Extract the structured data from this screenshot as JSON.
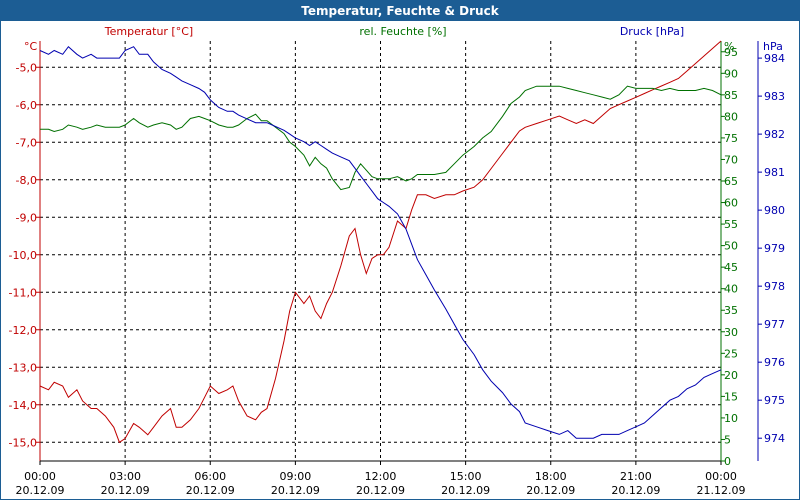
{
  "window": {
    "title": "Temperatur, Feuchte & Druck"
  },
  "chart_data": {
    "type": "line",
    "title": "Temperatur, Feuchte & Druck",
    "x_ticks": [
      {
        "time": "00:00",
        "date": "20.12.09"
      },
      {
        "time": "03:00",
        "date": "20.12.09"
      },
      {
        "time": "06:00",
        "date": "20.12.09"
      },
      {
        "time": "09:00",
        "date": "20.12.09"
      },
      {
        "time": "12:00",
        "date": "20.12.09"
      },
      {
        "time": "15:00",
        "date": "20.12.09"
      },
      {
        "time": "18:00",
        "date": "20.12.09"
      },
      {
        "time": "21:00",
        "date": "20.12.09"
      },
      {
        "time": "00:00",
        "date": "21.12.09"
      }
    ],
    "xlim_hours": [
      0,
      24
    ],
    "grid": true,
    "colors": {
      "temperature": "#c00000",
      "humidity": "#007000",
      "pressure": "#0000b0",
      "title_bar": "#1c5d94"
    },
    "axes": {
      "temperature": {
        "label": "Temperatur [°C]",
        "unit": "°C",
        "ylim": [
          -15.5,
          -4.3
        ],
        "ticks": [
          "-5,0",
          "-6,0",
          "-7,0",
          "-8,0",
          "-9,0",
          "-10,0",
          "-11,0",
          "-12,0",
          "-13,0",
          "-14,0",
          "-15,0"
        ]
      },
      "humidity": {
        "label": "rel. Feuchte [%]",
        "unit": "%",
        "ylim": [
          0,
          97.5
        ],
        "ticks": [
          "95",
          "90",
          "85",
          "80",
          "75",
          "70",
          "65",
          "60",
          "55",
          "50",
          "45",
          "40",
          "35",
          "30",
          "25",
          "20",
          "15",
          "10",
          "5",
          "0"
        ]
      },
      "pressure": {
        "label": "Druck [hPa]",
        "unit": "hPa",
        "ylim": [
          973.4,
          984.45
        ],
        "ticks": [
          "984",
          "983",
          "982",
          "981",
          "980",
          "979",
          "978",
          "977",
          "976",
          "975",
          "974"
        ]
      }
    },
    "series": [
      {
        "name": "Temperatur",
        "axis": "temperature",
        "x": [
          0,
          0.3,
          0.5,
          0.8,
          1,
          1.3,
          1.5,
          1.8,
          2,
          2.3,
          2.6,
          2.8,
          3,
          3.3,
          3.5,
          3.8,
          4,
          4.3,
          4.6,
          4.8,
          5,
          5.3,
          5.6,
          5.8,
          6,
          6.3,
          6.6,
          6.8,
          7,
          7.3,
          7.6,
          7.8,
          8,
          8.3,
          8.6,
          8.8,
          9,
          9.3,
          9.5,
          9.7,
          9.9,
          10.1,
          10.3,
          10.6,
          10.9,
          11.1,
          11.3,
          11.5,
          11.7,
          11.9,
          12.1,
          12.3,
          12.6,
          12.9,
          13.1,
          13.3,
          13.6,
          13.9,
          14.3,
          14.6,
          14.9,
          15.3,
          15.6,
          15.9,
          16.3,
          16.6,
          16.9,
          17.1,
          17.5,
          17.9,
          18.3,
          18.6,
          18.9,
          19.2,
          19.5,
          19.8,
          20.1,
          20.4,
          20.7,
          21,
          21.3,
          21.6,
          21.9,
          22.2,
          22.5,
          22.8,
          23.1,
          23.4,
          23.7,
          24
        ],
        "values": [
          -13.5,
          -13.6,
          -13.4,
          -13.5,
          -13.8,
          -13.6,
          -13.9,
          -14.1,
          -14.1,
          -14.3,
          -14.6,
          -15.0,
          -14.9,
          -14.5,
          -14.6,
          -14.8,
          -14.6,
          -14.3,
          -14.1,
          -14.6,
          -14.6,
          -14.4,
          -14.1,
          -13.8,
          -13.5,
          -13.7,
          -13.6,
          -13.5,
          -13.9,
          -14.3,
          -14.4,
          -14.2,
          -14.1,
          -13.3,
          -12.3,
          -11.5,
          -11.0,
          -11.3,
          -11.1,
          -11.5,
          -11.7,
          -11.3,
          -11.0,
          -10.3,
          -9.5,
          -9.3,
          -10.0,
          -10.5,
          -10.1,
          -10.0,
          -10.0,
          -9.8,
          -9.1,
          -9.3,
          -8.8,
          -8.4,
          -8.4,
          -8.5,
          -8.4,
          -8.4,
          -8.3,
          -8.2,
          -8.0,
          -7.7,
          -7.3,
          -7.0,
          -6.7,
          -6.6,
          -6.5,
          -6.4,
          -6.3,
          -6.4,
          -6.5,
          -6.4,
          -6.5,
          -6.3,
          -6.1,
          -6.0,
          -5.9,
          -5.8,
          -5.7,
          -5.6,
          -5.5,
          -5.4,
          -5.3,
          -5.1,
          -4.9,
          -4.7,
          -4.5,
          -4.3
        ]
      },
      {
        "name": "rel. Feuchte",
        "axis": "humidity",
        "x": [
          0,
          0.3,
          0.5,
          0.8,
          1,
          1.3,
          1.5,
          1.8,
          2,
          2.3,
          2.6,
          2.8,
          3,
          3.3,
          3.5,
          3.8,
          4,
          4.3,
          4.6,
          4.8,
          5,
          5.3,
          5.6,
          5.8,
          6,
          6.3,
          6.6,
          6.8,
          7,
          7.3,
          7.6,
          7.8,
          8,
          8.3,
          8.6,
          8.8,
          9,
          9.3,
          9.5,
          9.7,
          9.9,
          10.1,
          10.3,
          10.6,
          10.9,
          11.1,
          11.3,
          11.5,
          11.7,
          11.9,
          12.1,
          12.3,
          12.6,
          12.9,
          13.1,
          13.3,
          13.6,
          13.9,
          14.3,
          14.6,
          14.9,
          15.3,
          15.6,
          15.9,
          16.3,
          16.6,
          16.9,
          17.1,
          17.5,
          17.9,
          18.3,
          18.6,
          18.9,
          19.2,
          19.5,
          19.8,
          20.1,
          20.4,
          20.7,
          21,
          21.3,
          21.6,
          21.9,
          22.2,
          22.5,
          22.8,
          23.1,
          23.4,
          23.7,
          24
        ],
        "values": [
          77,
          77,
          76.5,
          77,
          78,
          77.5,
          77,
          77.5,
          78,
          77.5,
          77.5,
          77.5,
          78,
          79.5,
          78.5,
          77.5,
          78,
          78.5,
          78,
          77,
          77.5,
          79.5,
          80,
          79.5,
          79,
          78,
          77.5,
          77.5,
          78,
          79.5,
          80.5,
          79,
          79,
          77.5,
          76,
          74,
          73,
          71,
          68.5,
          70.5,
          69,
          68,
          65.5,
          63,
          63.5,
          67,
          69,
          67.5,
          66,
          65.5,
          65.5,
          65.5,
          66,
          65,
          65.5,
          66.5,
          66.5,
          66.5,
          67,
          69,
          71,
          73,
          75,
          76.5,
          80,
          83,
          84.5,
          86,
          87,
          87,
          87,
          86.5,
          86,
          85.5,
          85,
          84.5,
          84,
          85,
          87,
          86.5,
          86.5,
          86.5,
          86,
          86.5,
          86,
          86,
          86,
          86.5,
          86,
          85
        ]
      },
      {
        "name": "Druck",
        "axis": "pressure",
        "x": [
          0,
          0.3,
          0.5,
          0.8,
          1,
          1.3,
          1.5,
          1.8,
          2,
          2.3,
          2.6,
          2.8,
          3,
          3.3,
          3.5,
          3.8,
          4,
          4.3,
          4.6,
          4.8,
          5,
          5.3,
          5.6,
          5.8,
          6,
          6.3,
          6.6,
          6.8,
          7,
          7.3,
          7.6,
          7.8,
          8,
          8.3,
          8.6,
          8.8,
          9,
          9.3,
          9.5,
          9.7,
          9.9,
          10.1,
          10.3,
          10.6,
          10.9,
          11.1,
          11.3,
          11.5,
          11.7,
          11.9,
          12.1,
          12.3,
          12.6,
          12.9,
          13.1,
          13.3,
          13.6,
          13.9,
          14.3,
          14.6,
          14.9,
          15.3,
          15.6,
          15.9,
          16.3,
          16.6,
          16.9,
          17.1,
          17.5,
          17.9,
          18.3,
          18.6,
          18.9,
          19.2,
          19.5,
          19.8,
          20.1,
          20.4,
          20.7,
          21,
          21.3,
          21.6,
          21.9,
          22.2,
          22.5,
          22.8,
          23.1,
          23.4,
          23.7,
          24
        ],
        "values": [
          984.2,
          984.1,
          984.2,
          984.1,
          984.3,
          984.1,
          984.0,
          984.1,
          984.0,
          984.0,
          984.0,
          984.0,
          984.2,
          984.3,
          984.1,
          984.1,
          983.9,
          983.7,
          983.6,
          983.5,
          983.4,
          983.3,
          983.2,
          983.1,
          982.9,
          982.7,
          982.6,
          982.6,
          982.5,
          982.4,
          982.3,
          982.3,
          982.3,
          982.2,
          982.1,
          982.0,
          981.9,
          981.8,
          981.7,
          981.8,
          981.7,
          981.6,
          981.5,
          981.4,
          981.3,
          981.1,
          980.9,
          980.7,
          980.5,
          980.3,
          980.2,
          980.1,
          979.9,
          979.5,
          979.1,
          978.7,
          978.3,
          977.9,
          977.4,
          977.0,
          976.6,
          976.2,
          975.8,
          975.5,
          975.2,
          974.9,
          974.7,
          974.4,
          974.3,
          974.2,
          974.1,
          974.2,
          974.0,
          974.0,
          974.0,
          974.1,
          974.1,
          974.1,
          974.2,
          974.3,
          974.4,
          974.6,
          974.8,
          975.0,
          975.1,
          975.3,
          975.4,
          975.6,
          975.7,
          975.8
        ]
      }
    ]
  }
}
